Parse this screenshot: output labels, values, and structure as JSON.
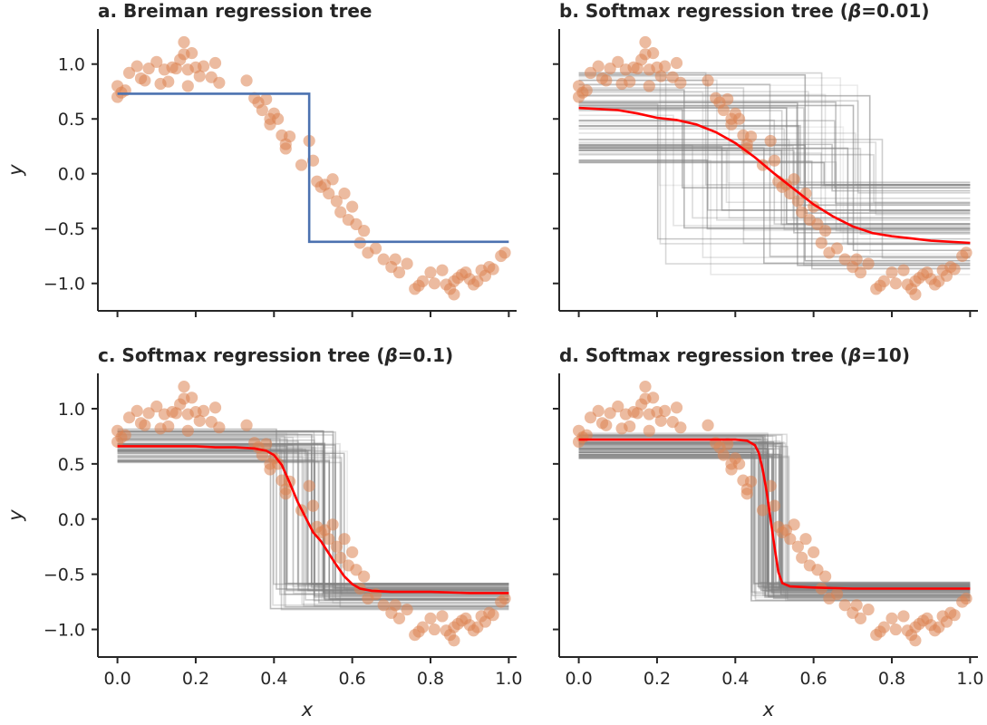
{
  "chart_data": [
    {
      "id": "a",
      "type": "line",
      "title": "a. Breiman regression tree",
      "xlabel": "",
      "ylabel": "y",
      "xlim": [
        -0.05,
        1.02
      ],
      "ylim": [
        -1.25,
        1.32
      ],
      "xticks": [
        "0.0",
        "0.2",
        "0.4",
        "0.6",
        "0.8",
        "1.0"
      ],
      "yticks": [
        "−1.0",
        "−0.5",
        "0.0",
        "0.5",
        "1.0"
      ],
      "show_xtick_labels": false,
      "show_ytick_labels": true,
      "tree_fit": {
        "split": 0.49,
        "left": 0.73,
        "right": -0.62,
        "color": "#4c72b0"
      }
    },
    {
      "id": "b",
      "type": "line",
      "title": "b. Softmax regression tree (β=0.01)",
      "title_parts": [
        "b. Softmax regression tree (",
        "β",
        "=0.01)"
      ],
      "beta": 0.01,
      "xlabel": "",
      "ylabel": "",
      "xlim": [
        -0.05,
        1.02
      ],
      "ylim": [
        -1.25,
        1.32
      ],
      "xticks": [
        "0.0",
        "0.2",
        "0.4",
        "0.6",
        "0.8",
        "1.0"
      ],
      "yticks": [
        "−1.0",
        "−0.5",
        "0.0",
        "0.5",
        "1.0"
      ],
      "show_xtick_labels": false,
      "show_ytick_labels": false,
      "ensemble": {
        "center": 0.49,
        "spread": 0.3,
        "left_lo": 0.1,
        "left_hi": 0.93,
        "right_lo": -0.92,
        "right_hi": -0.05,
        "count": 60
      },
      "mean_curve": {
        "x": [
          0.0,
          0.05,
          0.1,
          0.15,
          0.2,
          0.25,
          0.3,
          0.35,
          0.4,
          0.45,
          0.5,
          0.55,
          0.6,
          0.65,
          0.7,
          0.75,
          0.8,
          0.85,
          0.9,
          0.95,
          1.0
        ],
        "y": [
          0.6,
          0.59,
          0.58,
          0.55,
          0.51,
          0.49,
          0.45,
          0.38,
          0.28,
          0.15,
          0.0,
          -0.14,
          -0.28,
          -0.39,
          -0.48,
          -0.54,
          -0.57,
          -0.59,
          -0.61,
          -0.62,
          -0.63
        ]
      }
    },
    {
      "id": "c",
      "type": "line",
      "title": "c. Softmax regression tree (β=0.1)",
      "title_parts": [
        "c. Softmax regression tree (",
        "β",
        "=0.1)"
      ],
      "beta": 0.1,
      "xlabel": "x",
      "ylabel": "y",
      "xlim": [
        -0.05,
        1.02
      ],
      "ylim": [
        -1.25,
        1.32
      ],
      "xticks": [
        "0.0",
        "0.2",
        "0.4",
        "0.6",
        "0.8",
        "1.0"
      ],
      "yticks": [
        "−1.0",
        "−0.5",
        "0.0",
        "0.5",
        "1.0"
      ],
      "show_xtick_labels": true,
      "show_ytick_labels": true,
      "ensemble": {
        "center": 0.49,
        "spread": 0.1,
        "left_lo": 0.5,
        "left_hi": 0.82,
        "right_lo": -0.82,
        "right_hi": -0.58,
        "count": 60
      },
      "mean_curve": {
        "x": [
          0.0,
          0.1,
          0.2,
          0.25,
          0.3,
          0.35,
          0.38,
          0.4,
          0.42,
          0.44,
          0.46,
          0.48,
          0.5,
          0.52,
          0.54,
          0.56,
          0.58,
          0.6,
          0.62,
          0.65,
          0.7,
          0.8,
          0.9,
          1.0
        ],
        "y": [
          0.66,
          0.66,
          0.66,
          0.65,
          0.65,
          0.64,
          0.62,
          0.58,
          0.49,
          0.33,
          0.16,
          0.02,
          -0.12,
          -0.2,
          -0.31,
          -0.42,
          -0.52,
          -0.59,
          -0.63,
          -0.65,
          -0.66,
          -0.66,
          -0.67,
          -0.67
        ]
      }
    },
    {
      "id": "d",
      "type": "line",
      "title": "d. Softmax regression tree (β=10)",
      "title_parts": [
        "d. Softmax regression tree (",
        "β",
        "=10)"
      ],
      "beta": 10,
      "xlabel": "x",
      "ylabel": "",
      "xlim": [
        -0.05,
        1.02
      ],
      "ylim": [
        -1.25,
        1.32
      ],
      "xticks": [
        "0.0",
        "0.2",
        "0.4",
        "0.6",
        "0.8",
        "1.0"
      ],
      "yticks": [
        "−1.0",
        "−0.5",
        "0.0",
        "0.5",
        "1.0"
      ],
      "show_xtick_labels": true,
      "show_ytick_labels": false,
      "ensemble": {
        "center": 0.49,
        "spread": 0.05,
        "left_lo": 0.55,
        "left_hi": 0.78,
        "right_lo": -0.74,
        "right_hi": -0.57,
        "count": 60
      },
      "mean_curve": {
        "x": [
          0.0,
          0.1,
          0.2,
          0.3,
          0.4,
          0.43,
          0.45,
          0.46,
          0.47,
          0.48,
          0.49,
          0.5,
          0.51,
          0.52,
          0.54,
          0.6,
          0.7,
          0.8,
          0.9,
          1.0
        ],
        "y": [
          0.72,
          0.72,
          0.72,
          0.72,
          0.72,
          0.71,
          0.67,
          0.6,
          0.45,
          0.25,
          0.0,
          -0.25,
          -0.48,
          -0.58,
          -0.61,
          -0.62,
          -0.63,
          -0.63,
          -0.63,
          -0.63
        ]
      }
    }
  ],
  "observations": {
    "color": "#dd8452",
    "x": [
      0.0,
      0.0,
      0.01,
      0.02,
      0.03,
      0.05,
      0.06,
      0.07,
      0.08,
      0.1,
      0.11,
      0.12,
      0.13,
      0.14,
      0.15,
      0.16,
      0.17,
      0.17,
      0.18,
      0.18,
      0.19,
      0.2,
      0.21,
      0.22,
      0.24,
      0.25,
      0.26,
      0.33,
      0.35,
      0.36,
      0.37,
      0.38,
      0.39,
      0.39,
      0.4,
      0.41,
      0.42,
      0.43,
      0.43,
      0.44,
      0.47,
      0.49,
      0.5,
      0.51,
      0.52,
      0.53,
      0.54,
      0.55,
      0.56,
      0.57,
      0.58,
      0.59,
      0.6,
      0.61,
      0.62,
      0.63,
      0.64,
      0.66,
      0.68,
      0.7,
      0.71,
      0.72,
      0.74,
      0.76,
      0.77,
      0.78,
      0.8,
      0.81,
      0.83,
      0.84,
      0.85,
      0.86,
      0.86,
      0.87,
      0.88,
      0.89,
      0.9,
      0.91,
      0.92,
      0.93,
      0.94,
      0.95,
      0.96,
      0.98,
      0.99
    ],
    "y": [
      0.7,
      0.8,
      0.74,
      0.76,
      0.92,
      0.98,
      0.87,
      0.85,
      0.96,
      1.02,
      0.82,
      0.95,
      0.84,
      0.97,
      0.96,
      1.04,
      1.09,
      1.2,
      0.95,
      0.8,
      1.1,
      0.97,
      0.89,
      0.98,
      0.88,
      1.01,
      0.83,
      0.85,
      0.69,
      0.65,
      0.58,
      0.68,
      0.5,
      0.45,
      0.55,
      0.5,
      0.35,
      0.27,
      0.23,
      0.34,
      0.08,
      0.3,
      0.12,
      -0.07,
      -0.12,
      -0.1,
      -0.18,
      -0.05,
      -0.25,
      -0.35,
      -0.18,
      -0.42,
      -0.3,
      -0.46,
      -0.63,
      -0.52,
      -0.72,
      -0.68,
      -0.78,
      -0.85,
      -0.78,
      -0.9,
      -0.82,
      -1.05,
      -1.02,
      -0.98,
      -0.9,
      -1.0,
      -0.88,
      -1.01,
      -1.05,
      -1.1,
      -0.98,
      -0.95,
      -0.92,
      -0.9,
      -0.96,
      -1.01,
      -0.98,
      -0.88,
      -0.93,
      -0.85,
      -0.87,
      -0.75,
      -0.72
    ]
  }
}
